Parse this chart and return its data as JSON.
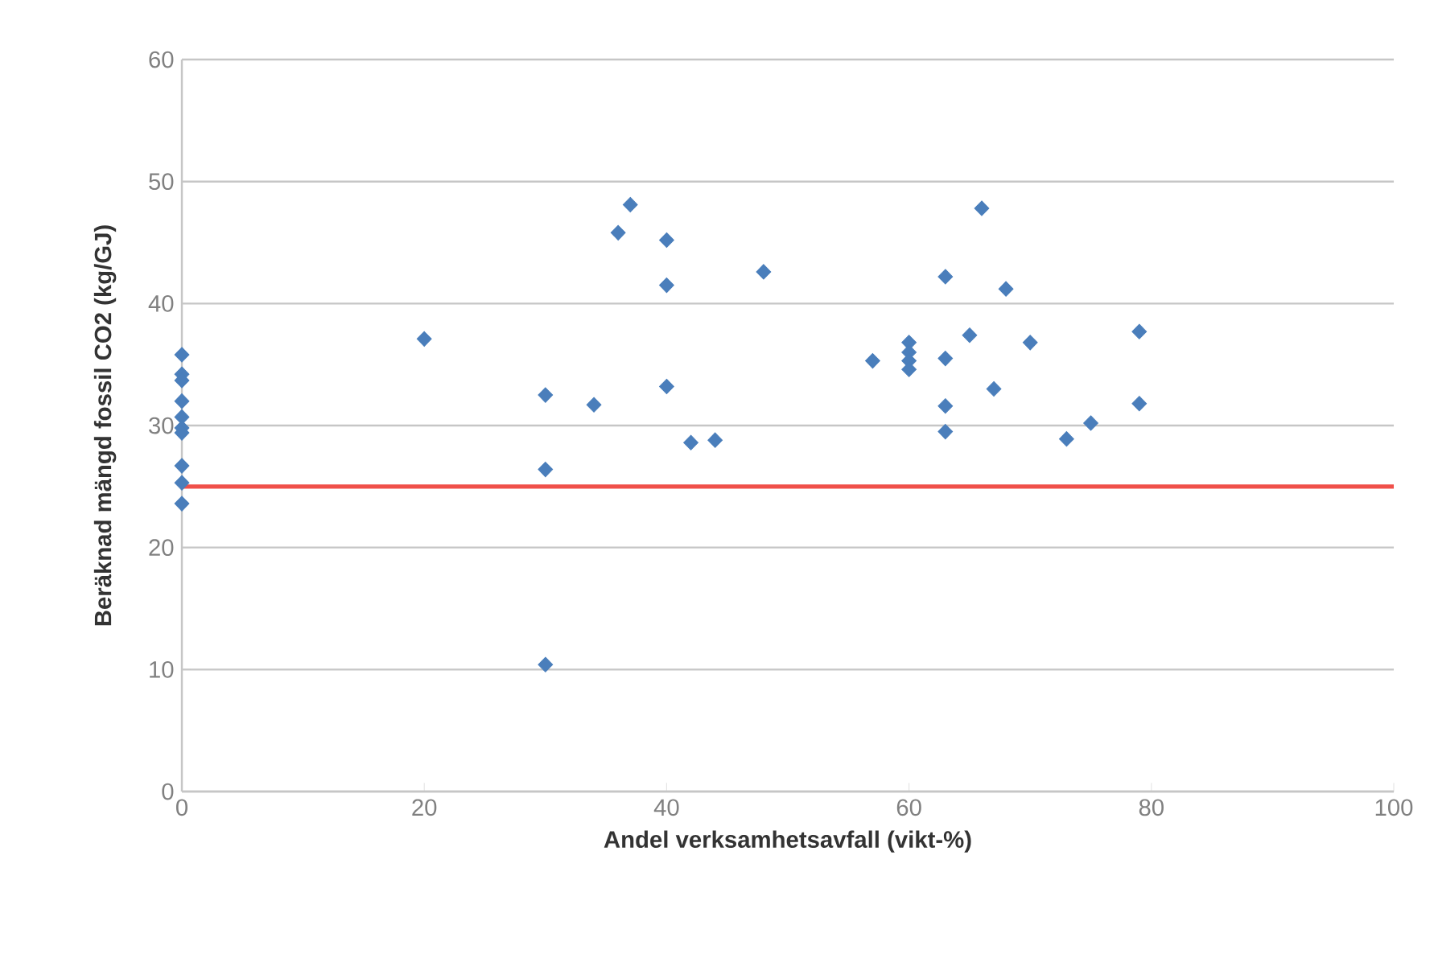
{
  "chart_data": {
    "type": "scatter",
    "xlabel": "Andel verksamhetsavfall (vikt-%)",
    "ylabel": "Beräknad mängd fossil CO2 (kg/GJ)",
    "xlim": [
      0,
      100
    ],
    "ylim": [
      0,
      60
    ],
    "xticks": [
      0,
      20,
      40,
      60,
      80,
      100
    ],
    "yticks": [
      0,
      10,
      20,
      30,
      40,
      50,
      60
    ],
    "grid": "y",
    "marker": "diamond",
    "series": [
      {
        "color": "#4a7ebb",
        "x": [
          0,
          0,
          0,
          0,
          0,
          0,
          0,
          0,
          0,
          0,
          20,
          30,
          30,
          30,
          34,
          36,
          37,
          40,
          40,
          40,
          42,
          44,
          48,
          57,
          60,
          60,
          60,
          60,
          63,
          63,
          63,
          63,
          65,
          66,
          67,
          68,
          70,
          73,
          75,
          79,
          79
        ],
        "values": [
          35.8,
          34.2,
          33.7,
          32.0,
          30.7,
          29.8,
          29.4,
          26.7,
          25.3,
          23.6,
          37.1,
          32.5,
          26.4,
          10.4,
          31.7,
          45.8,
          48.1,
          45.2,
          41.5,
          33.2,
          28.6,
          28.8,
          42.6,
          35.3,
          36.8,
          36.0,
          35.3,
          34.6,
          42.2,
          35.5,
          31.6,
          29.5,
          37.4,
          47.8,
          33.0,
          41.2,
          36.8,
          28.9,
          30.2,
          37.7,
          31.8
        ]
      }
    ],
    "ref_lines": [
      {
        "axis": "y",
        "value": 25,
        "color": "#f0504a"
      }
    ]
  }
}
